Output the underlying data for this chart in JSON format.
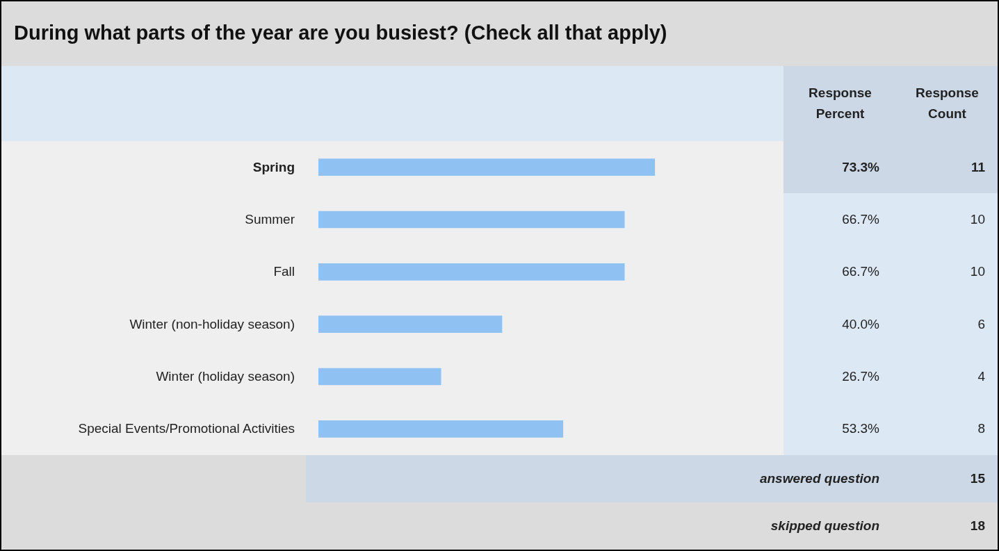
{
  "chart_data": {
    "type": "bar",
    "orientation": "horizontal",
    "title": "During what parts of the year are you busiest? (Check all that apply)",
    "categories": [
      "Spring",
      "Summer",
      "Fall",
      "Winter (non-holiday season)",
      "Winter (holiday season)",
      "Special Events/Promotional Activities"
    ],
    "values": [
      73.3,
      66.7,
      66.7,
      40.0,
      26.7,
      53.3
    ],
    "value_labels": [
      "73.3%",
      "66.7%",
      "66.7%",
      "40.0%",
      "26.7%",
      "53.3%"
    ],
    "color": "#8fc1f2",
    "annotations": [
      "Response Percent",
      "Response Count",
      "11",
      "10",
      "10",
      "6",
      "4",
      "8",
      "answered question",
      "15",
      "skipped question",
      "18"
    ]
  }
}
